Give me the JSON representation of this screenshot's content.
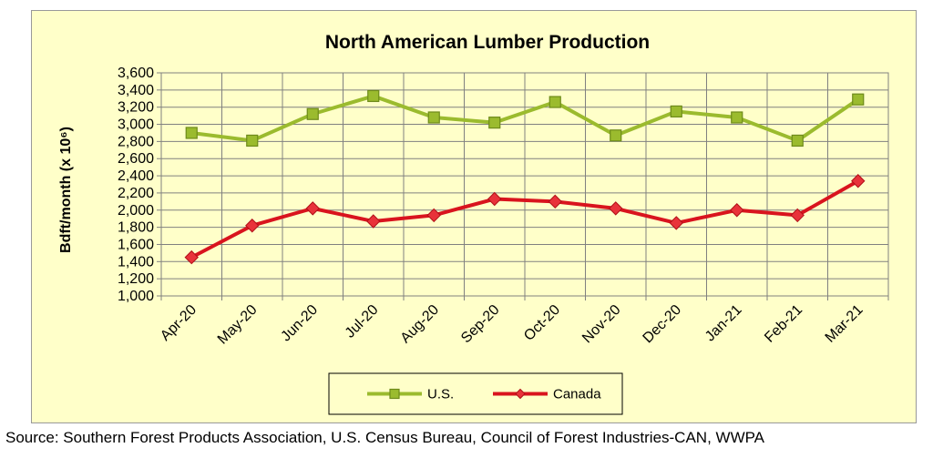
{
  "chart_data": {
    "type": "line",
    "title": "North American Lumber Production",
    "ylabel": "Bdft/month (x 10⁶)",
    "xlabel": "",
    "ylim": [
      1000,
      3600
    ],
    "ytick_step": 200,
    "grid": true,
    "legend_position": "bottom-center",
    "categories": [
      "Apr-20",
      "May-20",
      "Jun-20",
      "Jul-20",
      "Aug-20",
      "Sep-20",
      "Oct-20",
      "Nov-20",
      "Dec-20",
      "Jan-21",
      "Feb-21",
      "Mar-21"
    ],
    "series": [
      {
        "name": "U.S.",
        "values": [
          2900,
          2810,
          3120,
          3330,
          3080,
          3020,
          3260,
          2870,
          3150,
          3080,
          2810,
          3290
        ],
        "line_color": "#9bbb2e",
        "marker_color": "#9bbb2e",
        "marker_edge": "#6e8a1a",
        "marker": "square"
      },
      {
        "name": "Canada",
        "values": [
          1450,
          1820,
          2020,
          1870,
          1940,
          2130,
          2100,
          2020,
          1850,
          2000,
          1940,
          2340
        ],
        "line_color": "#d9141e",
        "marker_color": "#e8323a",
        "marker_edge": "#b00f18",
        "marker": "diamond"
      }
    ],
    "colors": {
      "background": "#ffffc9",
      "plot_background": "#ffffc9",
      "grid": "#808080"
    }
  },
  "source_text": "Source: Southern Forest Products Association, U.S. Census Bureau, Council of Forest Industries-CAN, WWPA"
}
